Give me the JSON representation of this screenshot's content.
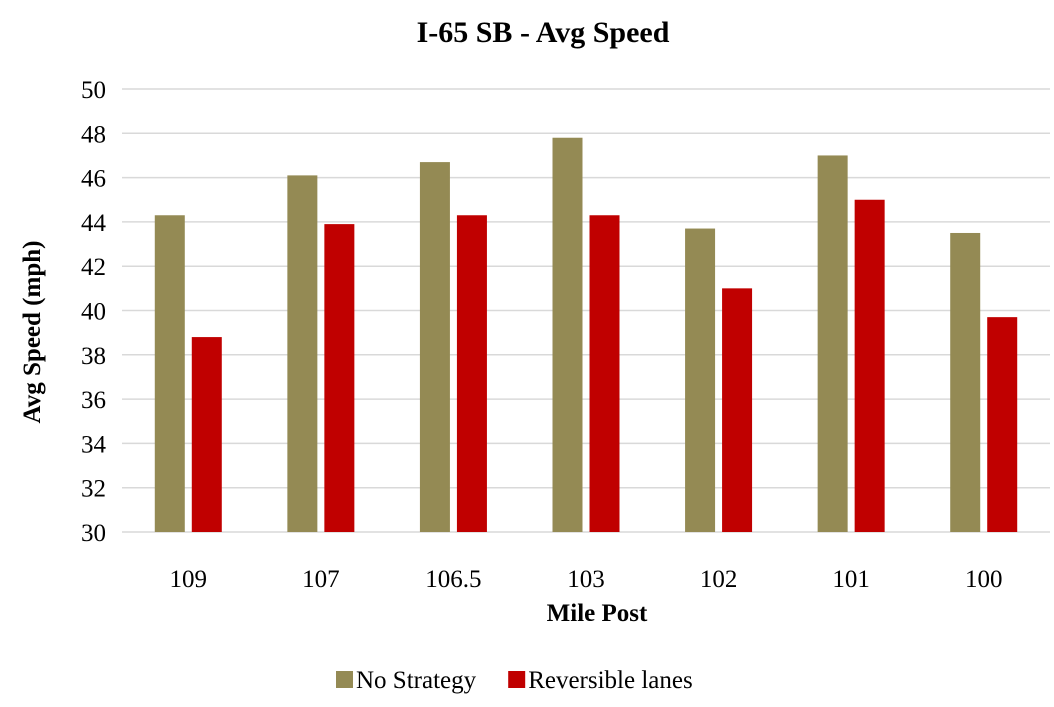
{
  "chart_data": {
    "type": "bar",
    "title": "I-65 SB - Avg Speed",
    "xlabel": "Mile Post",
    "ylabel": "Avg Speed (mph)",
    "categories": [
      "109",
      "107",
      "106.5",
      "103",
      "102",
      "101",
      "100"
    ],
    "series": [
      {
        "name": "No Strategy",
        "color": "#948a54",
        "values": [
          44.3,
          46.1,
          46.7,
          47.8,
          43.7,
          47.0,
          43.5
        ]
      },
      {
        "name": "Reversible lanes",
        "color": "#c00000",
        "values": [
          38.8,
          43.9,
          44.3,
          44.3,
          41.0,
          45.0,
          39.7
        ]
      }
    ],
    "ylim": [
      30,
      50
    ],
    "yticks": [
      30,
      32,
      34,
      36,
      38,
      40,
      42,
      44,
      46,
      48,
      50
    ],
    "grid": true,
    "legend_position": "bottom"
  }
}
